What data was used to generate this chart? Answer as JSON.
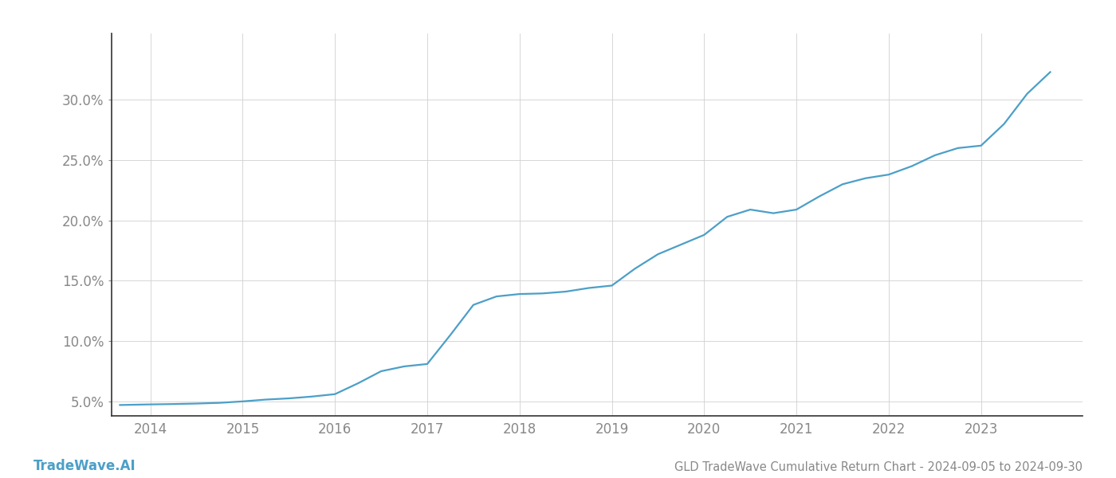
{
  "title": "GLD TradeWave Cumulative Return Chart - 2024-09-05 to 2024-09-30",
  "watermark": "TradeWave.AI",
  "line_color": "#4c9fc8",
  "background_color": "#ffffff",
  "grid_color": "#d0d0d0",
  "x_years": [
    2014,
    2015,
    2016,
    2017,
    2018,
    2019,
    2020,
    2021,
    2022,
    2023
  ],
  "x_data": [
    2013.67,
    2014.0,
    2014.25,
    2014.5,
    2014.75,
    2015.0,
    2015.25,
    2015.5,
    2015.75,
    2016.0,
    2016.25,
    2016.5,
    2016.75,
    2017.0,
    2017.25,
    2017.5,
    2017.75,
    2018.0,
    2018.25,
    2018.5,
    2018.75,
    2019.0,
    2019.25,
    2019.5,
    2019.75,
    2020.0,
    2020.25,
    2020.5,
    2020.75,
    2021.0,
    2021.25,
    2021.5,
    2021.75,
    2022.0,
    2022.25,
    2022.5,
    2022.75,
    2023.0,
    2023.25,
    2023.5,
    2023.75
  ],
  "y_data": [
    4.7,
    4.75,
    4.78,
    4.82,
    4.88,
    5.0,
    5.15,
    5.25,
    5.4,
    5.6,
    6.5,
    7.5,
    7.9,
    8.1,
    10.5,
    13.0,
    13.7,
    13.9,
    13.95,
    14.1,
    14.4,
    14.6,
    16.0,
    17.2,
    18.0,
    18.8,
    20.3,
    20.9,
    20.6,
    20.9,
    22.0,
    23.0,
    23.5,
    23.8,
    24.5,
    25.4,
    26.0,
    26.2,
    28.0,
    30.5,
    32.3
  ],
  "ylim": [
    3.8,
    35.5
  ],
  "xlim": [
    2013.58,
    2024.1
  ],
  "yticks": [
    5.0,
    10.0,
    15.0,
    20.0,
    25.0,
    30.0
  ],
  "title_fontsize": 10.5,
  "tick_fontsize": 12,
  "watermark_fontsize": 12,
  "line_width": 1.6,
  "tick_color": "#888888",
  "spine_color": "#333333",
  "left_spine_color": "#333333"
}
